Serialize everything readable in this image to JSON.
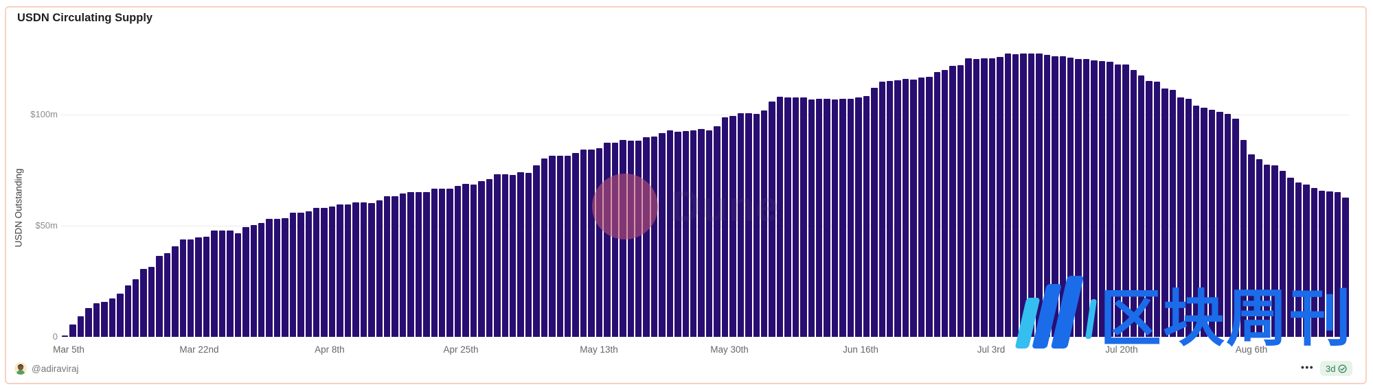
{
  "header": {
    "title": "USDN Circulating Supply"
  },
  "chart_data": {
    "type": "bar",
    "title": "USDN Circulating Supply",
    "xlabel": "",
    "ylabel": "USDN Outstanding",
    "ylim": [
      0,
      133
    ],
    "grid": "horizontal",
    "legend": "none",
    "bar_color": "#290E71",
    "y_ticks": [
      {
        "label": "$100m",
        "value": 100
      },
      {
        "label": "$50m",
        "value": 50
      },
      {
        "label": "0",
        "value": 0
      }
    ],
    "x_ticks": [
      {
        "label": "Mar 5th",
        "x_pct": 0.64
      },
      {
        "label": "Mar 22nd",
        "x_pct": 10.76
      },
      {
        "label": "Apr 8th",
        "x_pct": 20.88
      },
      {
        "label": "Apr 25th",
        "x_pct": 31.06
      },
      {
        "label": "May 13th",
        "x_pct": 41.77
      },
      {
        "label": "May 30th",
        "x_pct": 51.89
      },
      {
        "label": "Jun 16th",
        "x_pct": 62.07
      },
      {
        "label": "Jul 3rd",
        "x_pct": 72.19
      },
      {
        "label": "Jul 20th",
        "x_pct": 82.31
      },
      {
        "label": "Aug 6th",
        "x_pct": 92.38
      }
    ],
    "values_unit": "$m",
    "values": [
      0.6,
      5.6,
      9.4,
      13.1,
      15.0,
      15.6,
      17.2,
      19.4,
      23.1,
      26.0,
      30.4,
      31.3,
      36.5,
      37.5,
      40.6,
      43.7,
      43.7,
      44.6,
      45.0,
      47.7,
      47.7,
      47.7,
      46.6,
      49.2,
      50.2,
      51.2,
      53.0,
      53.0,
      53.4,
      55.7,
      55.7,
      56.5,
      57.8,
      57.8,
      58.5,
      59.4,
      59.5,
      60.4,
      60.4,
      60.0,
      61.3,
      63.2,
      63.1,
      64.4,
      65.1,
      65.0,
      64.9,
      66.5,
      66.7,
      66.5,
      67.7,
      68.8,
      68.5,
      70.0,
      70.8,
      72.9,
      73.1,
      72.7,
      74.0,
      73.6,
      77.1,
      80.2,
      81.5,
      81.5,
      81.5,
      82.5,
      84.1,
      84.1,
      84.7,
      87.3,
      87.3,
      88.5,
      88.2,
      88.2,
      89.8,
      90.1,
      91.5,
      92.7,
      92.2,
      92.4,
      92.7,
      93.5,
      92.9,
      94.5,
      98.6,
      99.3,
      100.5,
      100.5,
      100.3,
      101.6,
      105.7,
      107.8,
      107.6,
      107.6,
      107.5,
      106.5,
      106.8,
      107.1,
      106.5,
      106.8,
      106.8,
      107.7,
      108.1,
      112.0,
      114.6,
      115.1,
      115.3,
      115.8,
      115.6,
      116.5,
      116.7,
      119.1,
      119.8,
      121.7,
      121.9,
      125.0,
      124.7,
      125.0,
      125.2,
      125.8,
      127.3,
      127.0,
      127.2,
      127.4,
      127.4,
      126.7,
      126.2,
      126.0,
      125.5,
      124.9,
      124.9,
      124.3,
      123.9,
      123.5,
      122.5,
      122.3,
      120.0,
      117.5,
      115.0,
      114.7,
      111.5,
      111.0,
      107.5,
      107.0,
      104.0,
      103.0,
      102.0,
      101.0,
      100.3,
      98.0,
      88.6,
      81.9,
      79.8,
      77.4,
      77.0,
      74.6,
      71.5,
      69.4,
      68.3,
      67.0,
      65.7,
      65.2,
      64.9,
      62.6
    ]
  },
  "watermarks": {
    "dune_text": "Dune",
    "cjk_text": "区块周刊"
  },
  "footer": {
    "author_handle": "@adiraviraj",
    "menu_dots": "•••",
    "age_badge": "3d"
  },
  "colors": {
    "bar_color": "#290E71",
    "border_color": "#F8D2C2",
    "grid": "#EBEBEB",
    "tick_text": "#8C8C8C",
    "xtick_text": "#666666",
    "title_text": "#1F1F1F",
    "ytitle_text": "#3F3F3F",
    "footer_text": "#777777",
    "badge_bg": "#E6F2EA",
    "badge_text": "#308052",
    "cjk_blue": "#1B6CE9",
    "cjk_cyan": "#35BEF0",
    "dune_circle": "rgba(186,84,118,0.6)",
    "dune_text": "rgba(88,74,120,0.16)"
  }
}
